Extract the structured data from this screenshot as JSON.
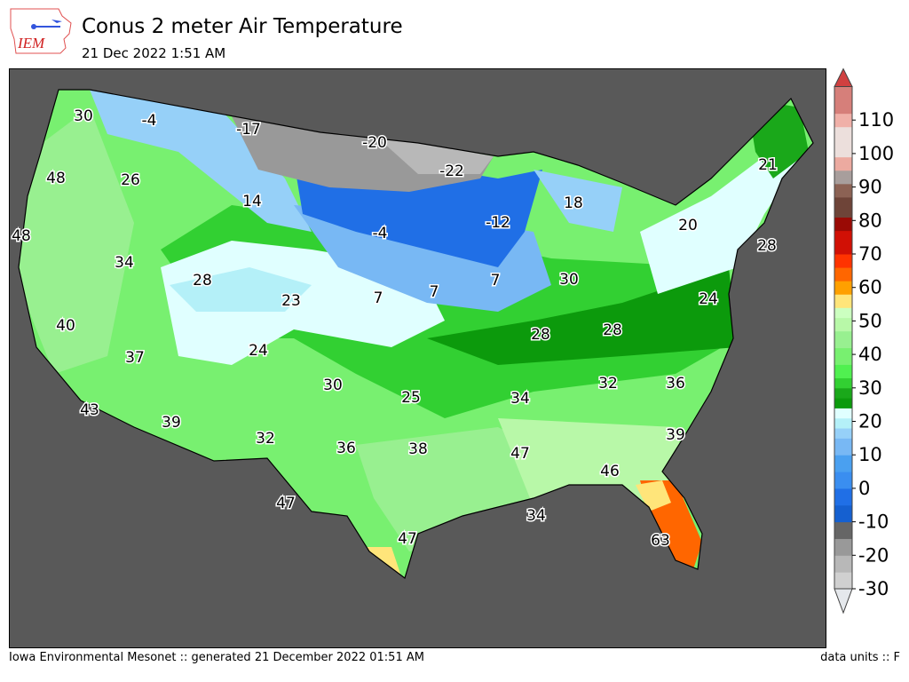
{
  "header": {
    "logo_text": "IEM",
    "title": "Conus 2 meter Air Temperature",
    "subtitle": "21 Dec 2022 1:51 AM"
  },
  "map": {
    "background_color": "#595959",
    "contour_labels": [
      "30",
      "-4",
      "-17",
      "-20",
      "-22",
      "48",
      "26",
      "14",
      "-12",
      "18",
      "21",
      "20",
      "-4",
      "48",
      "28",
      "34",
      "28",
      "23",
      "7",
      "7",
      "7",
      "30",
      "24",
      "40",
      "28",
      "28",
      "37",
      "24",
      "30",
      "25",
      "34",
      "32",
      "36",
      "43",
      "39",
      "32",
      "36",
      "38",
      "47",
      "39",
      "46",
      "47",
      "34",
      "47",
      "63"
    ]
  },
  "colorbar": {
    "units": "F",
    "ticks": [
      "-30",
      "-20",
      "-10",
      "0",
      "10",
      "20",
      "30",
      "40",
      "50",
      "60",
      "70",
      "80",
      "90",
      "100",
      "110"
    ],
    "under_color": "#e5e8ec",
    "over_color": "#d04040",
    "bands": [
      {
        "min": -30,
        "max": -25,
        "color": "#d0d0d0"
      },
      {
        "min": -25,
        "max": -20,
        "color": "#b8b8b8"
      },
      {
        "min": -20,
        "max": -15,
        "color": "#999999"
      },
      {
        "min": -15,
        "max": -10,
        "color": "#666666"
      },
      {
        "min": -10,
        "max": -5,
        "color": "#1560d0"
      },
      {
        "min": -5,
        "max": 0,
        "color": "#206fe6"
      },
      {
        "min": 0,
        "max": 5,
        "color": "#3a8ef0"
      },
      {
        "min": 5,
        "max": 10,
        "color": "#4aa0f0"
      },
      {
        "min": 10,
        "max": 15,
        "color": "#78b8f4"
      },
      {
        "min": 15,
        "max": 18,
        "color": "#96d0f8"
      },
      {
        "min": 18,
        "max": 21,
        "color": "#b4f0f8"
      },
      {
        "min": 21,
        "max": 24,
        "color": "#e0ffff"
      },
      {
        "min": 24,
        "max": 27,
        "color": "#0c9a0c"
      },
      {
        "min": 27,
        "max": 30,
        "color": "#1aa81a"
      },
      {
        "min": 30,
        "max": 33,
        "color": "#32d032"
      },
      {
        "min": 33,
        "max": 37,
        "color": "#50f050"
      },
      {
        "min": 37,
        "max": 42,
        "color": "#78f070"
      },
      {
        "min": 42,
        "max": 47,
        "color": "#98f090"
      },
      {
        "min": 47,
        "max": 51,
        "color": "#b8f8a8"
      },
      {
        "min": 51,
        "max": 54,
        "color": "#ccffc0"
      },
      {
        "min": 54,
        "max": 58,
        "color": "#ffe57a"
      },
      {
        "min": 58,
        "max": 62,
        "color": "#ffa000"
      },
      {
        "min": 62,
        "max": 66,
        "color": "#ff6600"
      },
      {
        "min": 66,
        "max": 70,
        "color": "#ff3300"
      },
      {
        "min": 70,
        "max": 77,
        "color": "#d11005"
      },
      {
        "min": 77,
        "max": 81,
        "color": "#9a0a05"
      },
      {
        "min": 81,
        "max": 87,
        "color": "#6e4438"
      },
      {
        "min": 87,
        "max": 91,
        "color": "#8c6254"
      },
      {
        "min": 91,
        "max": 95,
        "color": "#a89e9c"
      },
      {
        "min": 95,
        "max": 99,
        "color": "#ecaaa0"
      },
      {
        "min": 99,
        "max": 108,
        "color": "#ecdfdc"
      },
      {
        "min": 108,
        "max": 112,
        "color": "#f0b0a8"
      },
      {
        "min": 112,
        "max": 120,
        "color": "#d67f7a"
      }
    ]
  },
  "footer": {
    "left": "Iowa Environmental Mesonet :: generated 21 December 2022 01:51 AM",
    "right": "data units :: F"
  }
}
